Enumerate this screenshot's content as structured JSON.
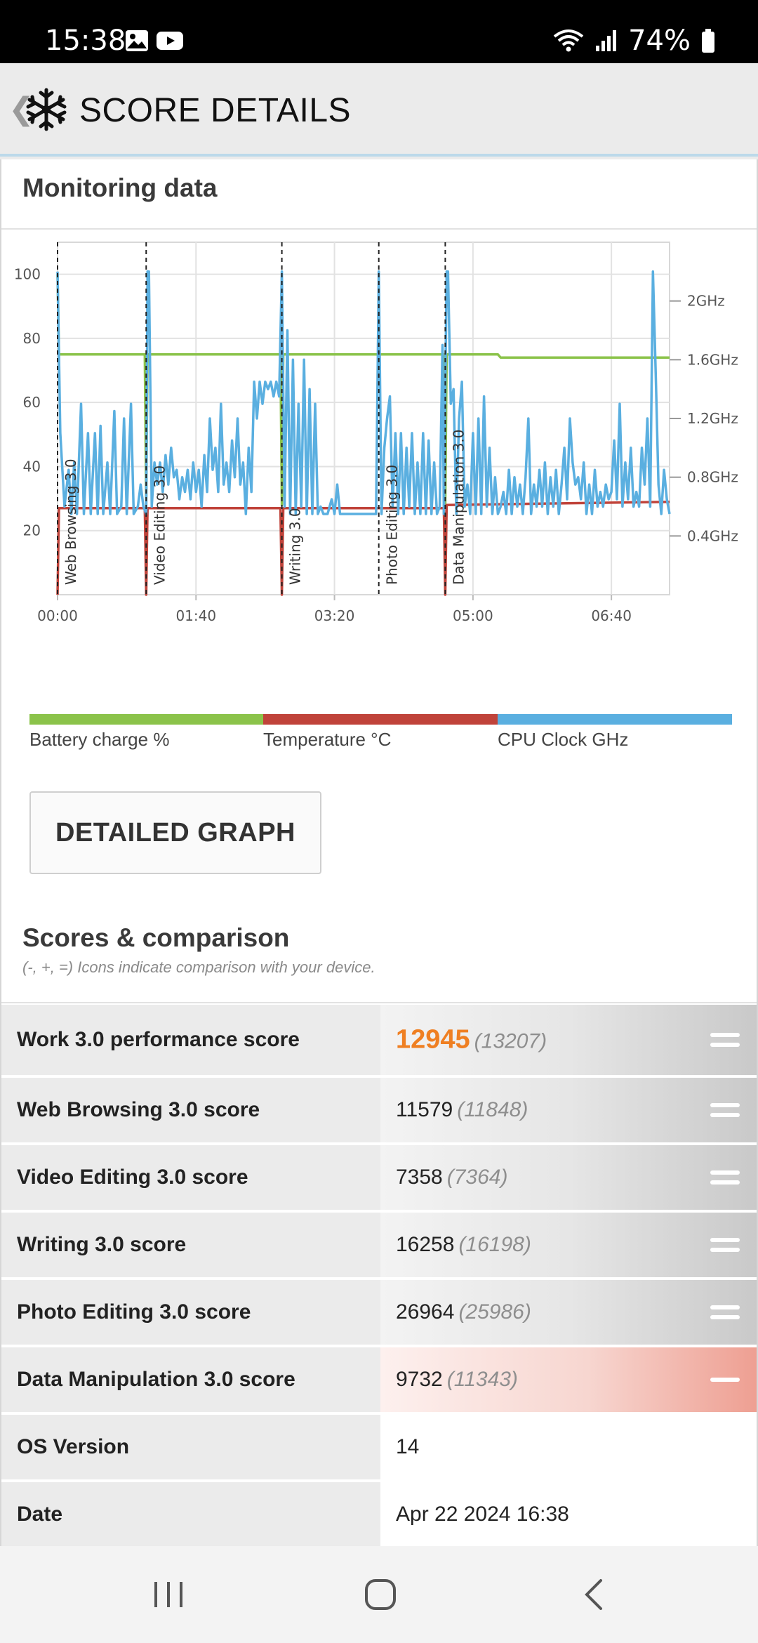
{
  "status_bar": {
    "time": "15:38",
    "battery": "74%",
    "icons": [
      "image-icon",
      "youtube-icon",
      "wifi-icon",
      "signal-icon",
      "battery-icon"
    ]
  },
  "app_bar": {
    "title": "SCORE DETAILS",
    "back_icon": "chevron-left-icon",
    "logo_icon": "snowflake-icon"
  },
  "monitoring": {
    "title": "Monitoring data",
    "legend": [
      {
        "label": "Battery charge %",
        "color": "#8bc34a"
      },
      {
        "label": "Temperature °C",
        "color": "#c0433a"
      },
      {
        "label": "CPU Clock GHz",
        "color": "#5aafe0"
      }
    ],
    "detailed_graph_button": "DETAILED GRAPH"
  },
  "chart_data": {
    "type": "line",
    "x_unit": "seconds",
    "x_ticks": [
      {
        "value": 0,
        "label": "00:00"
      },
      {
        "value": 100,
        "label": "01:40"
      },
      {
        "value": 200,
        "label": "03:20"
      },
      {
        "value": 300,
        "label": "05:00"
      },
      {
        "value": 400,
        "label": "06:40"
      }
    ],
    "xlim": [
      0,
      442
    ],
    "left_axis": {
      "ylim": [
        0,
        110
      ],
      "ticks": [
        20,
        40,
        60,
        80,
        100
      ]
    },
    "right_axis": {
      "ylim": [
        0,
        2.4
      ],
      "unit": "GHz",
      "ticks": [
        {
          "value": 0.4,
          "label": "0.4GHz"
        },
        {
          "value": 0.8,
          "label": "0.8GHz"
        },
        {
          "value": 1.2,
          "label": "1.2GHz"
        },
        {
          "value": 1.6,
          "label": "1.6GHz"
        },
        {
          "value": 2.0,
          "label": "2GHz"
        }
      ]
    },
    "grid": true,
    "test_markers": [
      {
        "x": 0,
        "label": "Web Browsing 3.0"
      },
      {
        "x": 64,
        "label": "Video Editing 3.0"
      },
      {
        "x": 162,
        "label": "Writing 3.0"
      },
      {
        "x": 232,
        "label": "Photo Editing 3.0"
      },
      {
        "x": 280,
        "label": "Data Manipulation 3.0"
      }
    ],
    "series": [
      {
        "name": "Battery charge %",
        "color": "#8bc34a",
        "axis": "left",
        "points": [
          [
            0,
            100
          ],
          [
            1,
            75
          ],
          [
            63,
            75
          ],
          [
            64,
            28
          ],
          [
            65,
            75
          ],
          [
            161,
            75
          ],
          [
            162,
            28
          ],
          [
            163,
            75
          ],
          [
            231,
            75
          ],
          [
            232,
            75
          ],
          [
            279,
            75
          ],
          [
            280,
            28
          ],
          [
            281,
            75
          ],
          [
            318,
            75
          ],
          [
            320,
            74
          ],
          [
            442,
            74
          ]
        ]
      },
      {
        "name": "Temperature °C",
        "color": "#c0433a",
        "axis": "left",
        "points": [
          [
            0,
            0
          ],
          [
            1,
            27
          ],
          [
            63,
            27
          ],
          [
            64,
            0
          ],
          [
            65,
            27
          ],
          [
            161,
            27
          ],
          [
            162,
            0
          ],
          [
            163,
            27
          ],
          [
            231,
            27
          ],
          [
            232,
            27
          ],
          [
            279,
            27
          ],
          [
            280,
            0
          ],
          [
            281,
            28
          ],
          [
            442,
            29
          ]
        ]
      },
      {
        "name": "CPU Clock GHz",
        "color": "#5aafe0",
        "axis": "right",
        "points": [
          [
            0,
            2.2
          ],
          [
            2,
            1.1
          ],
          [
            5,
            0.6
          ],
          [
            8,
            0.85
          ],
          [
            10,
            0.55
          ],
          [
            12,
            0.9
          ],
          [
            14,
            0.55
          ],
          [
            17,
            1.3
          ],
          [
            19,
            0.55
          ],
          [
            22,
            1.1
          ],
          [
            24,
            0.55
          ],
          [
            27,
            1.1
          ],
          [
            29,
            0.55
          ],
          [
            31,
            1.15
          ],
          [
            33,
            0.55
          ],
          [
            36,
            0.9
          ],
          [
            38,
            0.55
          ],
          [
            41,
            1.25
          ],
          [
            43,
            0.55
          ],
          [
            46,
            0.6
          ],
          [
            48,
            1.2
          ],
          [
            50,
            0.55
          ],
          [
            53,
            1.3
          ],
          [
            55,
            0.55
          ],
          [
            58,
            0.6
          ],
          [
            60,
            0.75
          ],
          [
            62,
            0.6
          ],
          [
            64,
            0.55
          ],
          [
            65,
            2.2
          ],
          [
            66,
            2.2
          ],
          [
            68,
            0.6
          ],
          [
            70,
            0.9
          ],
          [
            72,
            0.75
          ],
          [
            74,
            0.9
          ],
          [
            76,
            0.7
          ],
          [
            78,
            0.95
          ],
          [
            80,
            0.75
          ],
          [
            82,
            1.0
          ],
          [
            84,
            0.8
          ],
          [
            86,
            0.85
          ],
          [
            88,
            0.65
          ],
          [
            90,
            0.8
          ],
          [
            92,
            0.7
          ],
          [
            94,
            0.85
          ],
          [
            96,
            0.65
          ],
          [
            98,
            0.9
          ],
          [
            100,
            0.7
          ],
          [
            102,
            0.85
          ],
          [
            104,
            0.6
          ],
          [
            106,
            0.95
          ],
          [
            108,
            0.7
          ],
          [
            110,
            1.2
          ],
          [
            112,
            0.85
          ],
          [
            114,
            1.0
          ],
          [
            116,
            0.7
          ],
          [
            118,
            1.3
          ],
          [
            120,
            0.75
          ],
          [
            122,
            0.9
          ],
          [
            124,
            0.7
          ],
          [
            126,
            1.05
          ],
          [
            128,
            0.8
          ],
          [
            130,
            1.2
          ],
          [
            132,
            0.75
          ],
          [
            134,
            0.9
          ],
          [
            136,
            0.55
          ],
          [
            138,
            1.0
          ],
          [
            140,
            0.7
          ],
          [
            142,
            1.45
          ],
          [
            144,
            1.2
          ],
          [
            146,
            1.45
          ],
          [
            148,
            1.3
          ],
          [
            150,
            1.45
          ],
          [
            152,
            1.4
          ],
          [
            154,
            1.45
          ],
          [
            156,
            1.35
          ],
          [
            158,
            1.45
          ],
          [
            160,
            1.35
          ],
          [
            162,
            2.2
          ],
          [
            164,
            0.6
          ],
          [
            166,
            1.8
          ],
          [
            168,
            0.55
          ],
          [
            170,
            1.6
          ],
          [
            172,
            0.55
          ],
          [
            174,
            1.3
          ],
          [
            176,
            0.6
          ],
          [
            178,
            1.6
          ],
          [
            180,
            0.55
          ],
          [
            182,
            1.4
          ],
          [
            184,
            0.55
          ],
          [
            186,
            1.3
          ],
          [
            188,
            0.55
          ],
          [
            190,
            0.6
          ],
          [
            192,
            0.55
          ],
          [
            195,
            0.55
          ],
          [
            198,
            0.65
          ],
          [
            200,
            0.55
          ],
          [
            202,
            0.75
          ],
          [
            204,
            0.55
          ],
          [
            210,
            0.55
          ],
          [
            215,
            0.55
          ],
          [
            220,
            0.55
          ],
          [
            225,
            0.55
          ],
          [
            230,
            0.55
          ],
          [
            232,
            2.2
          ],
          [
            234,
            0.55
          ],
          [
            236,
            1.0
          ],
          [
            238,
            1.2
          ],
          [
            240,
            1.35
          ],
          [
            242,
            0.6
          ],
          [
            244,
            1.1
          ],
          [
            246,
            0.55
          ],
          [
            248,
            1.1
          ],
          [
            250,
            0.55
          ],
          [
            252,
            1.0
          ],
          [
            254,
            0.6
          ],
          [
            256,
            1.1
          ],
          [
            258,
            0.55
          ],
          [
            260,
            0.9
          ],
          [
            262,
            0.55
          ],
          [
            264,
            1.1
          ],
          [
            266,
            0.55
          ],
          [
            268,
            1.05
          ],
          [
            270,
            0.55
          ],
          [
            272,
            0.9
          ],
          [
            274,
            0.55
          ],
          [
            276,
            0.6
          ],
          [
            278,
            1.7
          ],
          [
            279,
            0.55
          ],
          [
            281,
            2.2
          ],
          [
            282,
            2.2
          ],
          [
            284,
            1.3
          ],
          [
            286,
            1.4
          ],
          [
            288,
            0.55
          ],
          [
            290,
            1.2
          ],
          [
            292,
            1.45
          ],
          [
            294,
            0.6
          ],
          [
            296,
            0.75
          ],
          [
            298,
            0.55
          ],
          [
            300,
            1.1
          ],
          [
            302,
            0.55
          ],
          [
            304,
            1.2
          ],
          [
            306,
            0.55
          ],
          [
            308,
            1.35
          ],
          [
            310,
            0.6
          ],
          [
            312,
            1.0
          ],
          [
            314,
            0.55
          ],
          [
            316,
            0.8
          ],
          [
            318,
            0.55
          ],
          [
            320,
            0.6
          ],
          [
            322,
            0.7
          ],
          [
            324,
            0.55
          ],
          [
            326,
            0.85
          ],
          [
            328,
            0.55
          ],
          [
            330,
            0.8
          ],
          [
            332,
            0.6
          ],
          [
            334,
            0.75
          ],
          [
            336,
            0.55
          ],
          [
            338,
            0.8
          ],
          [
            340,
            1.2
          ],
          [
            342,
            0.55
          ],
          [
            344,
            0.75
          ],
          [
            346,
            0.6
          ],
          [
            348,
            0.85
          ],
          [
            350,
            0.6
          ],
          [
            352,
            0.9
          ],
          [
            354,
            0.55
          ],
          [
            356,
            0.8
          ],
          [
            358,
            0.6
          ],
          [
            360,
            0.85
          ],
          [
            362,
            0.55
          ],
          [
            364,
            0.75
          ],
          [
            366,
            1.0
          ],
          [
            368,
            0.65
          ],
          [
            370,
            1.2
          ],
          [
            372,
            0.9
          ],
          [
            374,
            0.75
          ],
          [
            376,
            0.8
          ],
          [
            378,
            0.65
          ],
          [
            380,
            0.9
          ],
          [
            382,
            0.55
          ],
          [
            384,
            0.75
          ],
          [
            386,
            0.55
          ],
          [
            388,
            0.85
          ],
          [
            390,
            0.6
          ],
          [
            392,
            0.7
          ],
          [
            394,
            0.6
          ],
          [
            396,
            0.75
          ],
          [
            398,
            0.65
          ],
          [
            400,
            0.7
          ],
          [
            402,
            1.05
          ],
          [
            404,
            0.65
          ],
          [
            406,
            1.3
          ],
          [
            408,
            0.6
          ],
          [
            410,
            0.9
          ],
          [
            412,
            0.65
          ],
          [
            414,
            1.0
          ],
          [
            416,
            0.6
          ],
          [
            418,
            0.7
          ],
          [
            420,
            0.6
          ],
          [
            422,
            1.0
          ],
          [
            424,
            0.75
          ],
          [
            426,
            1.2
          ],
          [
            428,
            0.6
          ],
          [
            430,
            2.2
          ],
          [
            432,
            1.5
          ],
          [
            434,
            0.75
          ],
          [
            436,
            0.55
          ],
          [
            438,
            0.85
          ],
          [
            440,
            0.65
          ],
          [
            442,
            0.55
          ]
        ]
      }
    ]
  },
  "scores": {
    "title": "Scores & comparison",
    "subtitle": "(-, +, =) Icons indicate comparison with your device.",
    "rows": [
      {
        "name": "Work 3.0 performance score",
        "value": "12945",
        "compare": "(13207)",
        "result": "equal",
        "highlight": true
      },
      {
        "name": "Web Browsing 3.0 score",
        "value": "11579",
        "compare": "(11848)",
        "result": "equal"
      },
      {
        "name": "Video Editing 3.0 score",
        "value": "7358",
        "compare": "(7364)",
        "result": "equal"
      },
      {
        "name": "Writing 3.0 score",
        "value": "16258",
        "compare": "(16198)",
        "result": "equal"
      },
      {
        "name": "Photo Editing 3.0 score",
        "value": "26964",
        "compare": "(25986)",
        "result": "equal"
      },
      {
        "name": "Data Manipulation 3.0 score",
        "value": "9732",
        "compare": "(11343)",
        "result": "minus"
      },
      {
        "name": "OS Version",
        "value": "14",
        "compare": "",
        "result": "none"
      },
      {
        "name": "Date",
        "value": "Apr 22 2024 16:38",
        "compare": "",
        "result": "none"
      }
    ]
  },
  "nav_bar": {
    "items": [
      "recents-icon",
      "home-icon",
      "back-icon"
    ]
  }
}
